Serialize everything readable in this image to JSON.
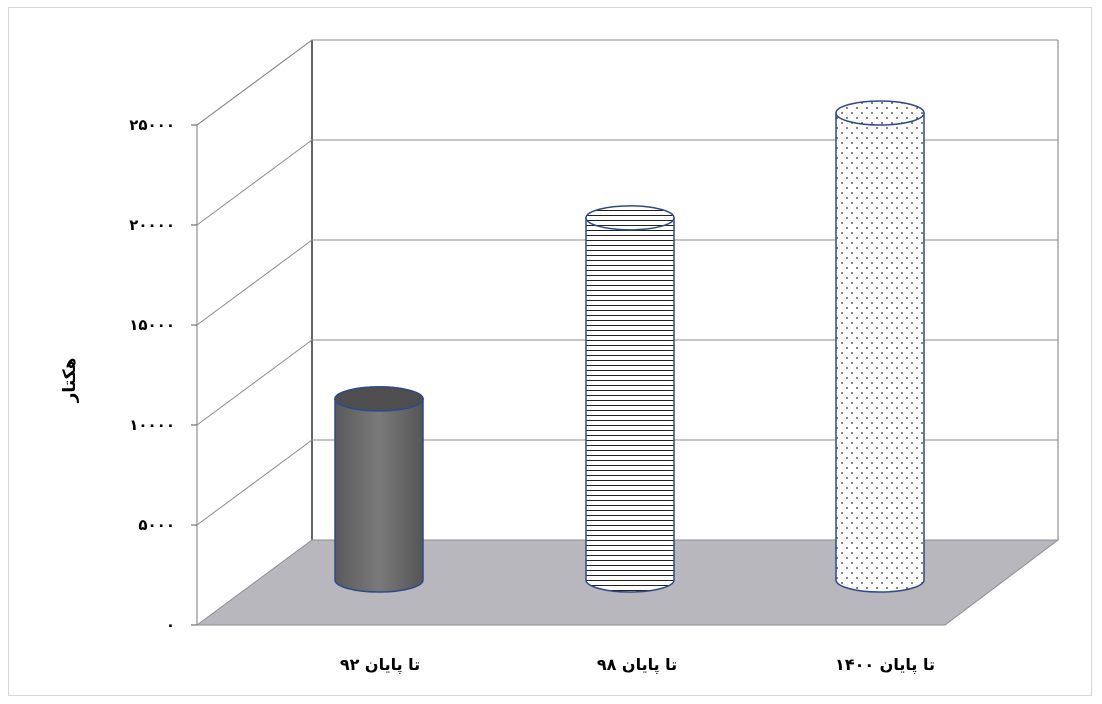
{
  "chart_data": {
    "type": "bar",
    "style": "3d-cylinder",
    "categories": [
      "تا پایان ۹۲",
      "تا پایان ۹۸",
      "تا پایان ۱۴۰۰"
    ],
    "series": [
      {
        "values": [
          9500,
          19000,
          24500
        ]
      }
    ],
    "ylabel": "هکتار",
    "ylim": [
      0,
      25000
    ],
    "yticks": [
      0,
      5000,
      10000,
      15000,
      20000,
      25000
    ],
    "ytick_labels": [
      "۰",
      "۵۰۰۰",
      "۱۰۰۰۰",
      "۱۵۰۰۰",
      "۲۰۰۰۰",
      "۲۵۰۰۰"
    ],
    "grid": true,
    "legend": "none",
    "fills": [
      "dark-gray-solid",
      "horizontal-stripes",
      "dotted"
    ],
    "colors": {
      "bar_dark": "#707070",
      "outline": "#2f4a8a",
      "floor": "#b7b7bd",
      "grid": "#8c8c8c"
    }
  }
}
